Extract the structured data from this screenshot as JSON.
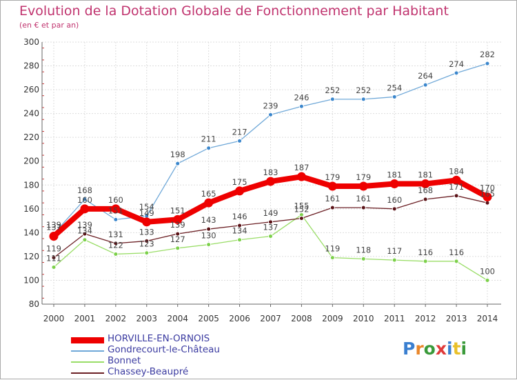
{
  "chart_data": {
    "type": "line",
    "title": "Evolution de la Dotation Globale de Fonctionnement par Habitant",
    "subtitle": "(en € et par an)",
    "x": [
      "2000",
      "2001",
      "2002",
      "2003",
      "2004",
      "2005",
      "2006",
      "2007",
      "2008",
      "2009",
      "2010",
      "2011",
      "2012",
      "2013",
      "2014"
    ],
    "ylim": [
      80,
      300
    ],
    "yticks": [
      80,
      100,
      120,
      140,
      160,
      180,
      200,
      220,
      240,
      260,
      280,
      300
    ],
    "grid": true,
    "legend_position": "bottom-left",
    "series": [
      {
        "name": "HORVILLE-EN-ORNOIS",
        "color": "#ee0000",
        "values": [
          137,
          160,
          160,
          149,
          151,
          165,
          175,
          183,
          187,
          179,
          179,
          181,
          181,
          184,
          170
        ],
        "labels": [
          "137",
          "160",
          "160",
          "149",
          "151",
          "165",
          "175",
          "183",
          "187",
          "179",
          "179",
          "181",
          "181",
          "184",
          "170"
        ]
      },
      {
        "name": "Gondrecourt-le-Château",
        "color": "#6fa8d8",
        "values": [
          139,
          168,
          151,
          154,
          198,
          211,
          217,
          239,
          246,
          252,
          252,
          254,
          264,
          274,
          282
        ],
        "labels": [
          "139",
          "168",
          "151",
          "154",
          "198",
          "211",
          "217",
          "239",
          "246",
          "252",
          "252",
          "254",
          "264",
          "274",
          "282"
        ]
      },
      {
        "name": "Bonnet",
        "color": "#99dd66",
        "values": [
          111,
          134,
          122,
          123,
          127,
          130,
          134,
          137,
          155,
          119,
          118,
          117,
          116,
          116,
          100
        ],
        "labels": [
          "111",
          "134",
          "122",
          "123",
          "127",
          "130",
          "134",
          "137",
          "155",
          "119",
          "118",
          "117",
          "116",
          "116",
          "100"
        ]
      },
      {
        "name": "Chassey-Beaupré",
        "color": "#6b1f24",
        "values": [
          119,
          139,
          131,
          133,
          139,
          143,
          146,
          149,
          152,
          161,
          161,
          160,
          168,
          171,
          165
        ],
        "labels": [
          "119",
          "139",
          "131",
          "133",
          "139",
          "143",
          "146",
          "149",
          "152",
          "161",
          "161",
          "160",
          "168",
          "171",
          "165"
        ]
      }
    ]
  },
  "logo": {
    "letters": [
      "P",
      "r",
      "o",
      "x",
      "i",
      "t",
      "i"
    ],
    "colors": [
      "#3a7fd0",
      "#e9862a",
      "#3a9a3a",
      "#e03a3a",
      "#3a7fd0",
      "#e9c02a",
      "#3a9a3a"
    ]
  }
}
